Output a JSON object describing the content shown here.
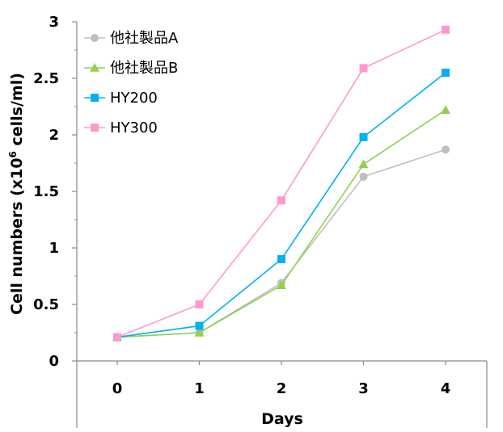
{
  "chart_data": {
    "type": "line",
    "title": "",
    "xlabel": "Days",
    "ylabel_prefix": "Cell numbers (x10",
    "ylabel_sup": "6",
    "ylabel_suffix": " cells/ml)",
    "x": [
      0,
      1,
      2,
      3,
      4
    ],
    "xlim": [
      0,
      4
    ],
    "ylim": [
      0,
      3
    ],
    "yticks": [
      "0",
      "0.5",
      "1",
      "1.5",
      "2",
      "2.5",
      "3"
    ],
    "xticks": [
      "0",
      "1",
      "2",
      "3",
      "4"
    ],
    "grid": false,
    "legend_position": "top-left",
    "series": [
      {
        "name": "他社製品A",
        "color": "#bfbfbf",
        "marker": "circle",
        "values": [
          0.21,
          0.25,
          0.69,
          1.63,
          1.87
        ]
      },
      {
        "name": "他社製品B",
        "color": "#92d050",
        "marker": "triangle",
        "values": [
          0.21,
          0.25,
          0.67,
          1.74,
          2.22
        ]
      },
      {
        "name": "HY200",
        "color": "#00b0f0",
        "marker": "square",
        "values": [
          0.21,
          0.31,
          0.9,
          1.98,
          2.55
        ]
      },
      {
        "name": "HY300",
        "color": "#ff99cc",
        "marker": "square",
        "values": [
          0.21,
          0.5,
          1.42,
          2.59,
          2.93
        ]
      }
    ]
  }
}
